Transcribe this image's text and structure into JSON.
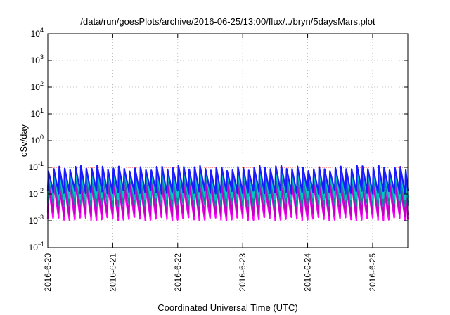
{
  "chart_data": {
    "type": "line",
    "title": "/data/run/goesPlots/archive/2016-06-25/13:00/flux/../bryn/5daysMars.plot",
    "xlabel": "Coordinated Universal Time (UTC)",
    "ylabel": "cSv/day",
    "yscale": "log",
    "ylim": [
      0.0001,
      10000
    ],
    "xlim": [
      "2016-06-20 00:00",
      "2016-06-25 13:00"
    ],
    "y_ticks": [
      {
        "base": "10",
        "exp": "-4"
      },
      {
        "base": "10",
        "exp": "-3"
      },
      {
        "base": "10",
        "exp": "-2"
      },
      {
        "base": "10",
        "exp": "-1"
      },
      {
        "base": "10",
        "exp": "0"
      },
      {
        "base": "10",
        "exp": "1"
      },
      {
        "base": "10",
        "exp": "2"
      },
      {
        "base": "10",
        "exp": "3"
      },
      {
        "base": "10",
        "exp": "4"
      }
    ],
    "x_ticks": [
      "2016-6-20",
      "2016-6-21",
      "2016-6-22",
      "2016-6-23",
      "2016-6-24",
      "2016-6-25"
    ],
    "grid": true,
    "reference_line": {
      "y": 0.1,
      "color": "#ff0000",
      "style": "dotted"
    },
    "sawtooth_period_hours": 2,
    "series": [
      {
        "color": "#ff00ff",
        "peak": 0.02,
        "trough": 0.0012
      },
      {
        "color": "#c000c0",
        "peak": 0.025,
        "trough": 0.0018
      },
      {
        "color": "#3b6fb0",
        "peak": 0.045,
        "trough": 0.004
      },
      {
        "color": "#009090",
        "peak": 0.06,
        "trough": 0.005
      },
      {
        "color": "#00c8c8",
        "peak": 0.07,
        "trough": 0.007
      },
      {
        "color": "#1a1aff",
        "peak": 0.095,
        "trough": 0.012
      }
    ]
  }
}
